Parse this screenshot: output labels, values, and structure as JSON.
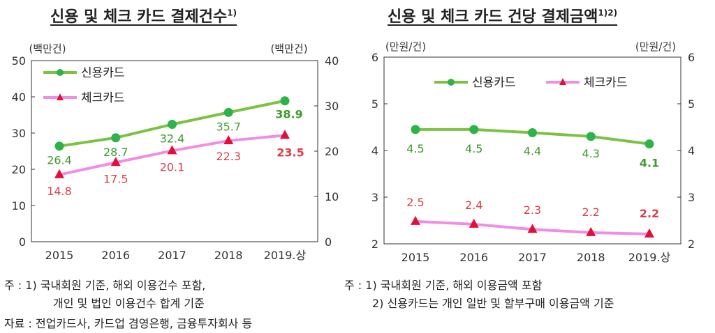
{
  "chart_data": [
    {
      "type": "line",
      "title": "신용 및 체크 카드 결제건수",
      "title_sup": "1)",
      "left_axis_unit": "(백만건)",
      "right_axis_unit": "(백만건)",
      "categories": [
        "2015",
        "2016",
        "2017",
        "2018",
        "2019.상"
      ],
      "ylim_left": [
        0,
        50
      ],
      "ylim_right": [
        0,
        40
      ],
      "yticks_left": [
        0,
        10,
        20,
        30,
        40,
        50
      ],
      "yticks_right": [
        0,
        10,
        20,
        30,
        40
      ],
      "grid": false,
      "legend_position": "top-left",
      "series": [
        {
          "name": "신용카드",
          "axis": "left",
          "color": "#7cc242",
          "marker": "circle",
          "values": [
            26.4,
            28.7,
            32.4,
            35.7,
            38.9
          ],
          "labels": [
            "26.4",
            "28.7",
            "32.4",
            "35.7",
            "38.9"
          ],
          "label_color": "#3f9a2f"
        },
        {
          "name": "체크카드",
          "axis": "right",
          "color": "#f08ee6",
          "marker": "triangle",
          "values": [
            14.8,
            17.5,
            20.1,
            22.3,
            23.5
          ],
          "labels": [
            "14.8",
            "17.5",
            "20.1",
            "22.3",
            "23.5"
          ],
          "label_color": "#e03c4a"
        }
      ]
    },
    {
      "type": "line",
      "title": "신용 및 체크 카드 건당 결제금액",
      "title_sup": "1)2)",
      "left_axis_unit": "(만원/건)",
      "right_axis_unit": "(만원/건)",
      "categories": [
        "2015",
        "2016",
        "2017",
        "2018",
        "2019.상"
      ],
      "ylim_left": [
        2,
        6
      ],
      "ylim_right": [
        2,
        6
      ],
      "yticks_left": [
        2,
        3,
        4,
        5,
        6
      ],
      "yticks_right": [
        2,
        3,
        4,
        5,
        6
      ],
      "grid": false,
      "legend_position": "top-center",
      "series": [
        {
          "name": "신용카드",
          "axis": "left",
          "color": "#7cc242",
          "marker": "circle",
          "values": [
            4.45,
            4.45,
            4.38,
            4.3,
            4.14
          ],
          "labels": [
            "4.5",
            "4.5",
            "4.4",
            "4.3",
            "4.1"
          ],
          "label_color": "#3f9a2f"
        },
        {
          "name": "체크카드",
          "axis": "left",
          "color": "#f08ee6",
          "marker": "triangle",
          "values": [
            2.48,
            2.42,
            2.31,
            2.24,
            2.21
          ],
          "labels": [
            "2.5",
            "2.4",
            "2.3",
            "2.2",
            "2.2"
          ],
          "label_color": "#e03c4a"
        }
      ]
    }
  ],
  "notes": {
    "left_line1": "주 : 1) 국내회원 기준, 해외 이용건수 포함,",
    "left_line2": "개인 및 법인 이용건수 합계 기준",
    "left_source": "자료 : 전업카드사, 카드업 겸영은행, 금융투자회사 등",
    "right_line1": "주 : 1) 국내회원 기준, 해외 이용금액 포함",
    "right_line2": "2) 신용카드는 개인 일반 및 할부구매 이용금액 기준"
  }
}
